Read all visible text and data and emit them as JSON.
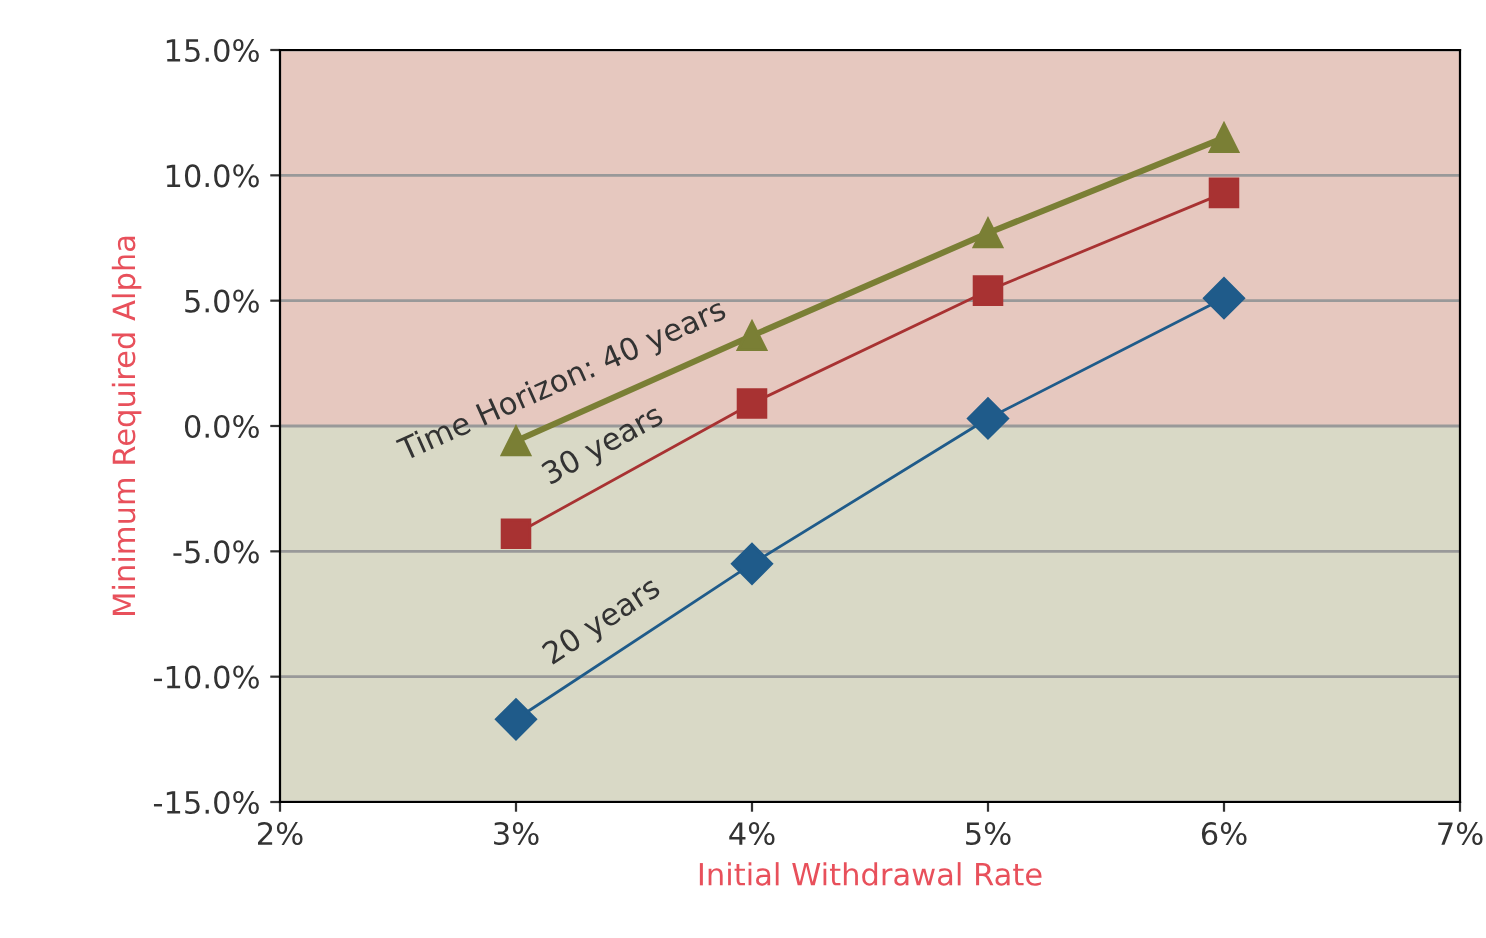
{
  "chart_data": {
    "type": "line",
    "xlabel": "Initial Withdrawal Rate",
    "ylabel": "Minimum Required Alpha",
    "x": [
      3,
      4,
      5,
      6
    ],
    "series": [
      {
        "name": "Time Horizon: 40 years",
        "color": "#7a7f35",
        "marker": "triangle",
        "values": [
          -0.6,
          3.6,
          7.7,
          11.5
        ]
      },
      {
        "name": "30 years",
        "color": "#a83232",
        "marker": "square",
        "values": [
          -4.3,
          0.9,
          5.4,
          9.3
        ]
      },
      {
        "name": "20 years",
        "color": "#1f5b8a",
        "marker": "diamond",
        "values": [
          -11.7,
          -5.5,
          0.3,
          5.1
        ]
      }
    ],
    "xlim": [
      2,
      7
    ],
    "xticks": [
      {
        "value": 2,
        "label": "2%"
      },
      {
        "value": 3,
        "label": "3%"
      },
      {
        "value": 4,
        "label": "4%"
      },
      {
        "value": 5,
        "label": "5%"
      },
      {
        "value": 6,
        "label": "6%"
      },
      {
        "value": 7,
        "label": "7%"
      }
    ],
    "ylim": [
      -15,
      15
    ],
    "yticks": [
      {
        "value": -15,
        "label": "-15.0%"
      },
      {
        "value": -10,
        "label": "-10.0%"
      },
      {
        "value": -5,
        "label": "-5.0%"
      },
      {
        "value": 0,
        "label": "0.0%"
      },
      {
        "value": 5,
        "label": "5.0%"
      },
      {
        "value": 10,
        "label": "10.0%"
      },
      {
        "value": 15,
        "label": "15.0%"
      }
    ],
    "bands": [
      {
        "axis": "y",
        "from": 0,
        "to": 15,
        "color": "#e6c8bf"
      },
      {
        "axis": "y",
        "from": -15,
        "to": 0,
        "color": "#d9d9c6"
      }
    ],
    "grid": "y",
    "legend": false
  }
}
